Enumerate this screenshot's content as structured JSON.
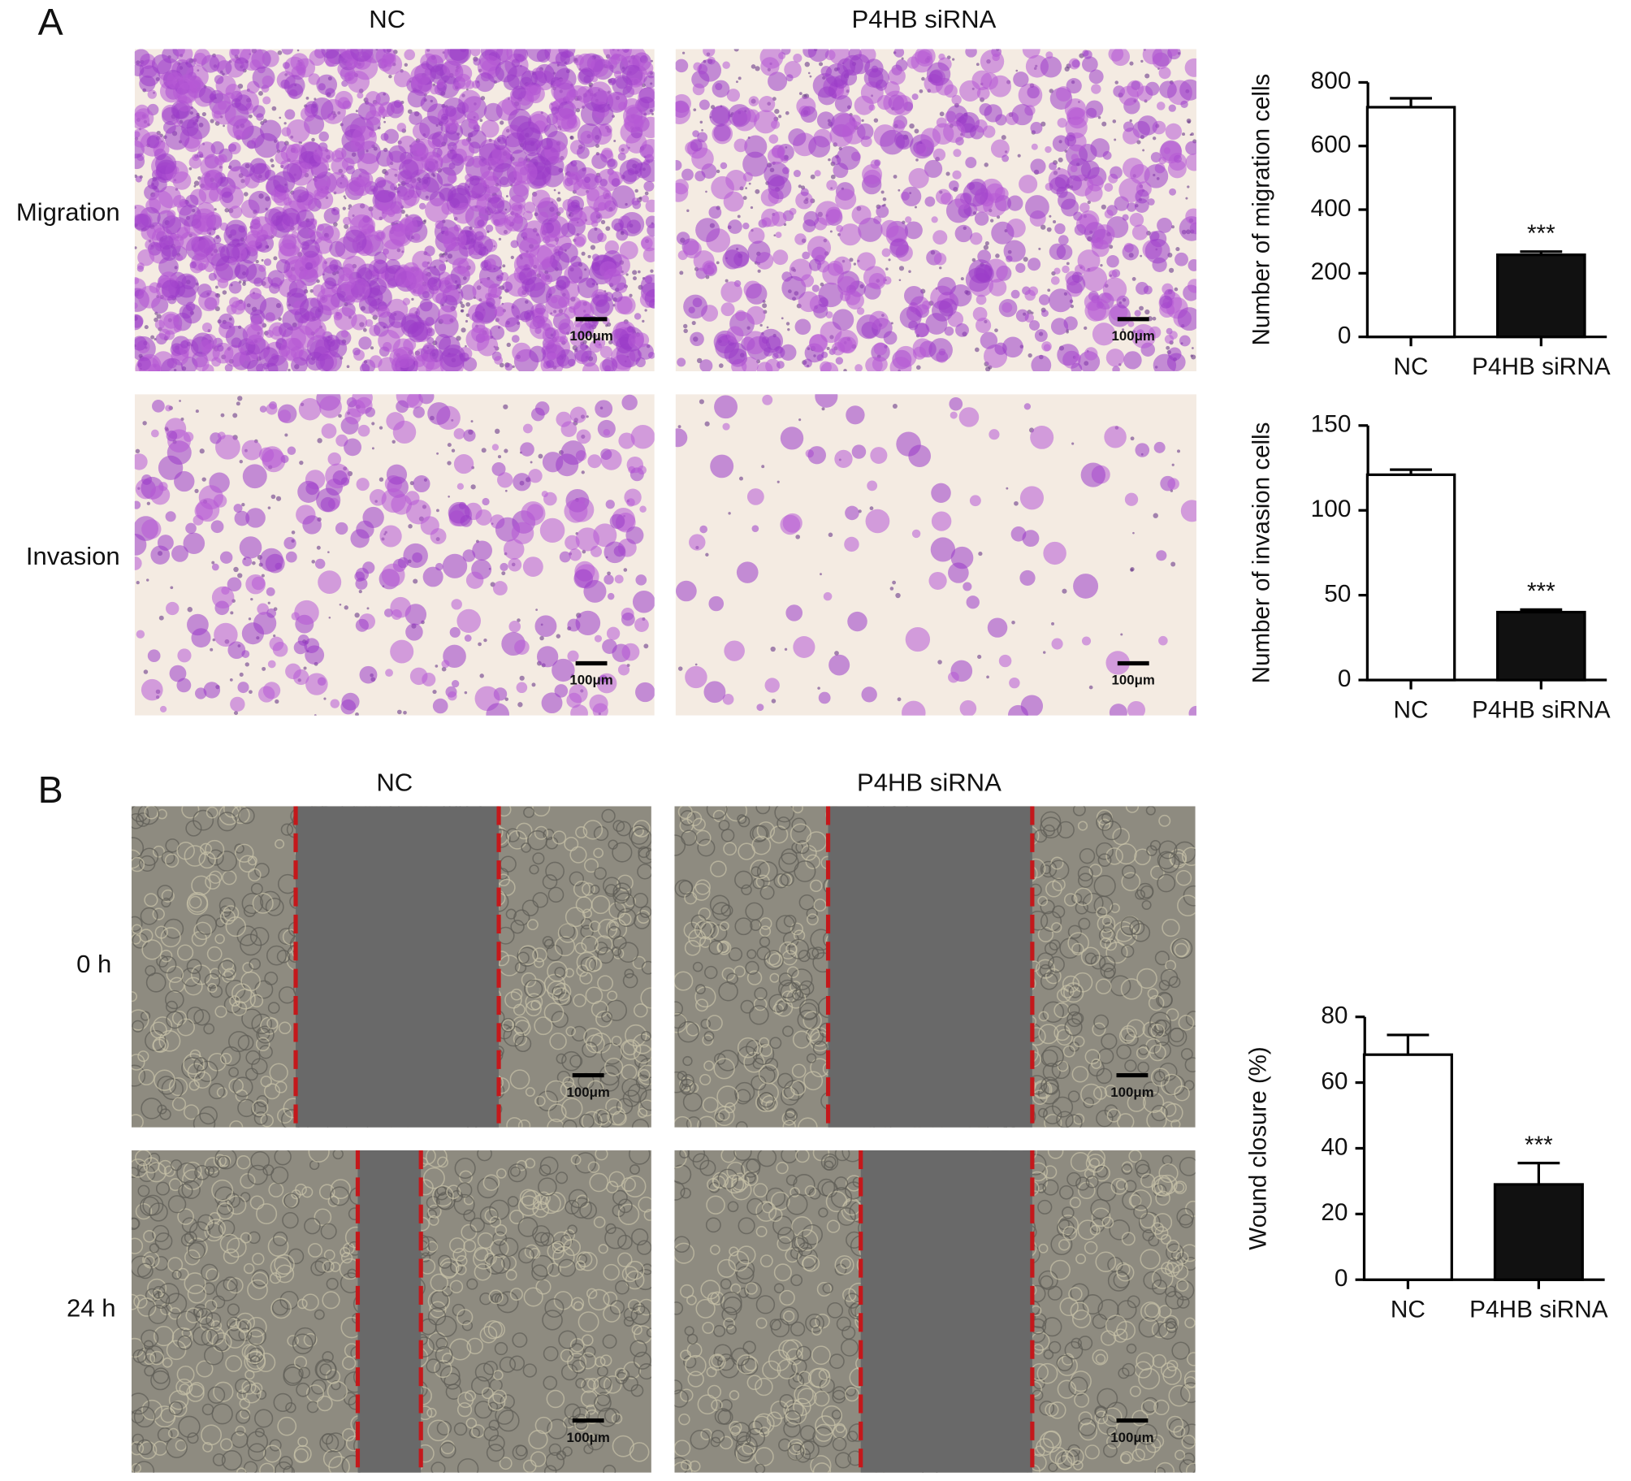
{
  "panels": [
    {
      "label": "A",
      "columns": [
        "NC",
        "P4HB siRNA"
      ],
      "rows": [
        "Migration",
        "Invasion"
      ]
    },
    {
      "label": "B",
      "columns": [
        "NC",
        "P4HB siRNA"
      ],
      "rows": [
        "0 h",
        "24 h"
      ]
    }
  ],
  "scale_bar_label": "100μm",
  "chart_data": [
    {
      "type": "bar",
      "ylabel": "Number of migration cells",
      "categories": [
        "NC",
        "P4HB siRNA"
      ],
      "values": [
        722,
        258
      ],
      "errors": [
        28,
        10
      ],
      "colors": [
        "#ffffff",
        "#111111"
      ],
      "ylim": [
        0,
        800
      ],
      "yticks": [
        0,
        200,
        400,
        600,
        800
      ],
      "annotations": [
        {
          "x": "P4HB siRNA",
          "text": "***"
        }
      ]
    },
    {
      "type": "bar",
      "ylabel": "Number of invasion cells",
      "categories": [
        "NC",
        "P4HB siRNA"
      ],
      "values": [
        121,
        40
      ],
      "errors": [
        3,
        1.5
      ],
      "colors": [
        "#ffffff",
        "#111111"
      ],
      "ylim": [
        0,
        150
      ],
      "yticks": [
        0,
        50,
        100,
        150
      ],
      "annotations": [
        {
          "x": "P4HB siRNA",
          "text": "***"
        }
      ]
    },
    {
      "type": "bar",
      "ylabel": "Wound closure (%)",
      "categories": [
        "NC",
        "P4HB siRNA"
      ],
      "values": [
        68.5,
        29
      ],
      "errors": [
        6,
        6.5
      ],
      "colors": [
        "#ffffff",
        "#111111"
      ],
      "ylim": [
        0,
        80
      ],
      "yticks": [
        0,
        20,
        40,
        60,
        80
      ],
      "annotations": [
        {
          "x": "P4HB siRNA",
          "text": "***"
        }
      ]
    }
  ]
}
